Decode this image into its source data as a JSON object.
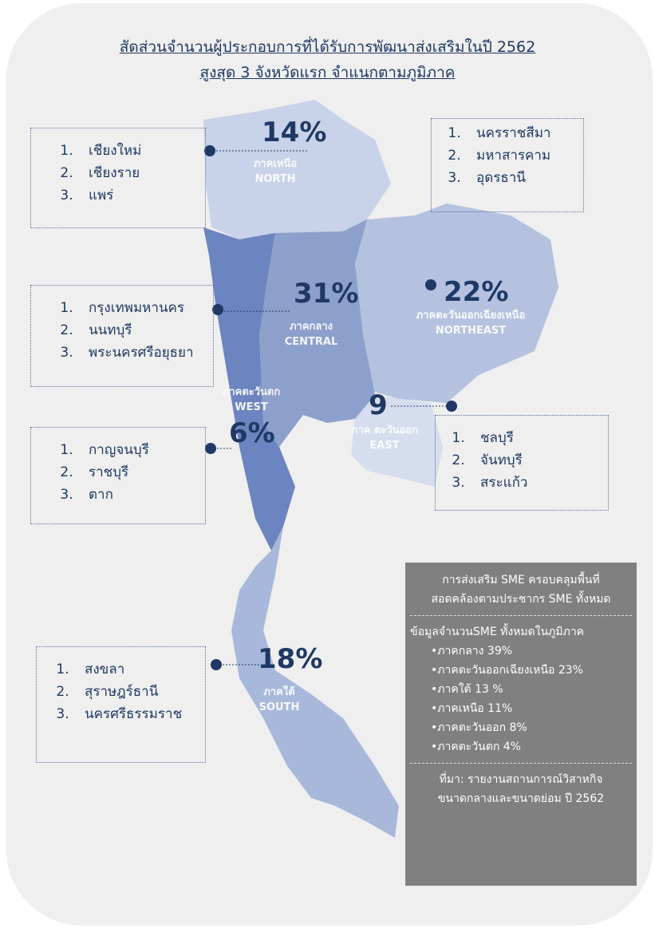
{
  "header": {
    "title": [
      "สัดส่วนจำนวนผู้ประกอบการที่ได้รับการพัฒนาส่งเสริมในปี 2562",
      "สูงสุด 3 จังหวัดแรก จำแนกตามภูมิภาค"
    ]
  },
  "regions": [
    {
      "percent": "14%",
      "name_th": "ภาคเหนือ",
      "name_en": "NORTH",
      "provinces": [
        "เชียงใหม่",
        "เชียงราย",
        "แพร่"
      ]
    },
    {
      "percent": "31%",
      "name_th": "ภาคกลาง",
      "name_en": "CENTRAL",
      "provinces": [
        "กรุงเทพมหานคร",
        "นนทบุรี",
        "พระนครศรีอยุธยา"
      ]
    },
    {
      "percent": "22%",
      "name_th": "ภาคตะวันออกเฉียงเหนือ",
      "name_en": "NORTHEAST",
      "provinces": [
        "นครราชสีมา",
        "มหาสารคาม",
        "อุดรธานี"
      ]
    },
    {
      "percent": "6%",
      "name_th": "ภาคตะวันตก",
      "name_en": "WEST",
      "provinces": [
        "กาญจนบุรี",
        "ราชบุรี",
        "ตาก"
      ]
    },
    {
      "percent": "9",
      "name_th": "ภาค ตะวันออก",
      "name_en": "EAST",
      "provinces": [
        "ชลบุรี",
        "จันทบุรี",
        "สระแก้ว"
      ]
    },
    {
      "percent": "18%",
      "name_th": "ภาคใต้",
      "name_en": "SOUTH",
      "provinces": [
        "สงขลา",
        "สุราษฎร์ธานี",
        "นครศรีธรรมราช"
      ]
    }
  ],
  "info": {
    "heading": [
      "การส่งเสริม SME ครอบคลุมพื้นที่",
      "สอดคล้องตามประชากร SME ทั้งหมด"
    ],
    "subheading": "ข้อมูลจำนวนSME ทั้งหมดในภูมิภาค",
    "items": [
      "•ภาคกลาง 39%",
      "•ภาคตะวันออกเฉียงเหนือ 23%",
      "•ภาคใต้ 13 %",
      "•ภาคเหนือ 11%",
      "•ภาคตะวันออก 8%",
      "•ภาคตะวันตก 4%"
    ],
    "source": [
      "ที่มา: รายงานสถานการณ์วิสาหกิจ",
      "ขนาดกลางและขนาดย่อม ปี 2562"
    ]
  }
}
